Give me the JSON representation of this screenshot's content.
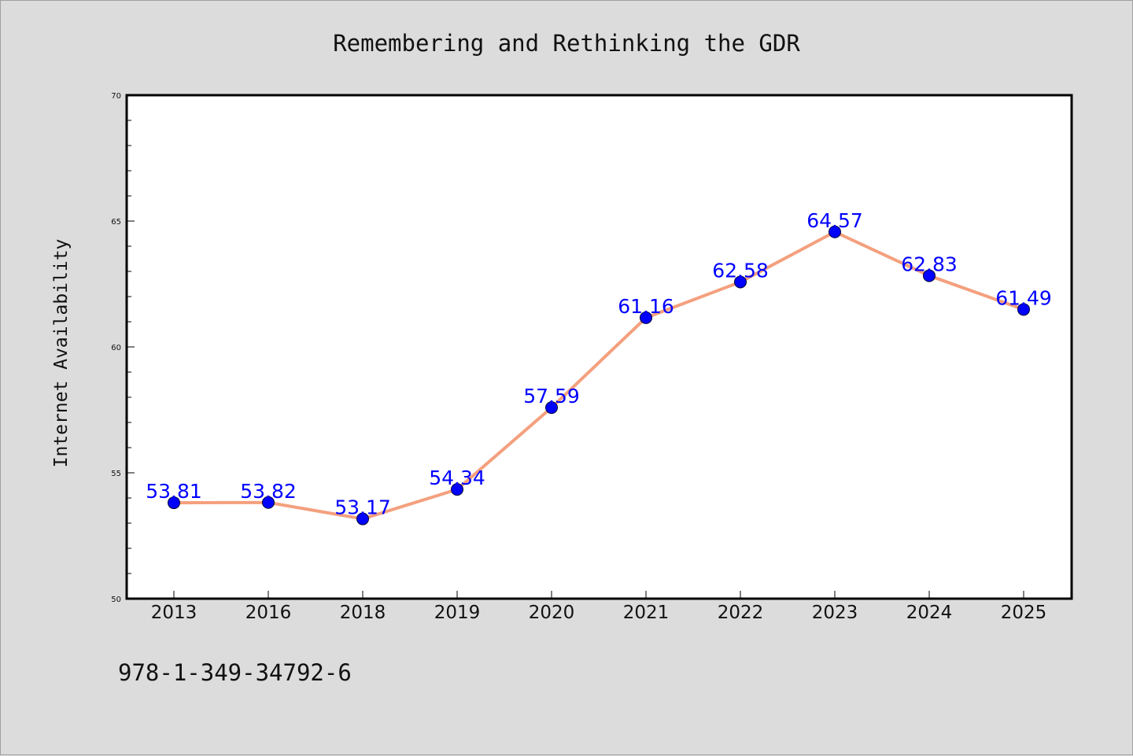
{
  "chart_data": {
    "type": "line",
    "title": "Remembering and Rethinking the GDR",
    "xlabel": "",
    "ylabel": "Internet Availability",
    "categories": [
      "2013",
      "2016",
      "2018",
      "2019",
      "2020",
      "2021",
      "2022",
      "2023",
      "2024",
      "2025"
    ],
    "series": [
      {
        "values": [
          53.81,
          53.82,
          53.17,
          54.34,
          57.59,
          61.16,
          62.58,
          64.57,
          62.83,
          61.49
        ],
        "line_color": "#f4a07e",
        "marker_color": "#0000ff"
      }
    ],
    "data_labels": [
      "53.81",
      "53.82",
      "53.17",
      "54.34",
      "57.59",
      "61.16",
      "62.58",
      "64.57",
      "62.83",
      "61.49"
    ],
    "yticks": [
      50,
      55,
      60,
      65,
      70
    ],
    "ytick_labels": [
      "50",
      "55",
      "60",
      "65",
      "70"
    ],
    "ylim": [
      50,
      70
    ],
    "grid": false,
    "legend": "none"
  },
  "footer": {
    "isbn": "978-1-349-34792-6"
  },
  "colors": {
    "background": "#dcdcdc",
    "plot_background": "#ffffff",
    "label": "#0000ff"
  }
}
